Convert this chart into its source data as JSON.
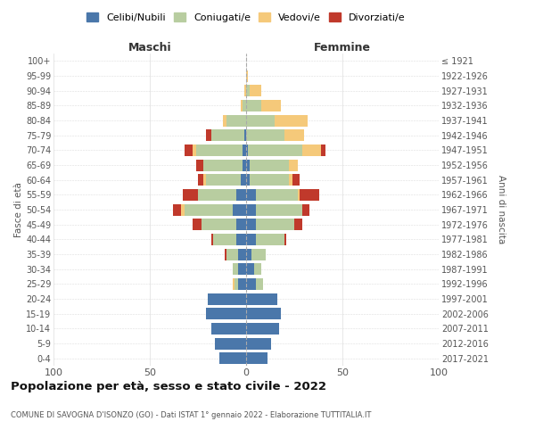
{
  "age_groups": [
    "0-4",
    "5-9",
    "10-14",
    "15-19",
    "20-24",
    "25-29",
    "30-34",
    "35-39",
    "40-44",
    "45-49",
    "50-54",
    "55-59",
    "60-64",
    "65-69",
    "70-74",
    "75-79",
    "80-84",
    "85-89",
    "90-94",
    "95-99",
    "100+"
  ],
  "birth_years": [
    "2017-2021",
    "2012-2016",
    "2007-2011",
    "2002-2006",
    "1997-2001",
    "1992-1996",
    "1987-1991",
    "1982-1986",
    "1977-1981",
    "1972-1976",
    "1967-1971",
    "1962-1966",
    "1957-1961",
    "1952-1956",
    "1947-1951",
    "1942-1946",
    "1937-1941",
    "1932-1936",
    "1927-1931",
    "1922-1926",
    "≤ 1921"
  ],
  "males": {
    "celibi": [
      14,
      16,
      18,
      21,
      20,
      4,
      4,
      4,
      5,
      5,
      7,
      5,
      3,
      2,
      2,
      1,
      0,
      0,
      0,
      0,
      0
    ],
    "coniugati": [
      0,
      0,
      0,
      0,
      0,
      2,
      3,
      6,
      12,
      18,
      25,
      20,
      18,
      20,
      24,
      17,
      10,
      2,
      0,
      0,
      0
    ],
    "vedovi": [
      0,
      0,
      0,
      0,
      0,
      1,
      0,
      0,
      0,
      0,
      2,
      0,
      1,
      0,
      2,
      0,
      2,
      1,
      1,
      0,
      0
    ],
    "divorziati": [
      0,
      0,
      0,
      0,
      0,
      0,
      0,
      1,
      1,
      5,
      4,
      8,
      3,
      4,
      4,
      3,
      0,
      0,
      0,
      0,
      0
    ]
  },
  "females": {
    "nubili": [
      11,
      13,
      17,
      18,
      16,
      5,
      4,
      3,
      5,
      5,
      5,
      5,
      2,
      2,
      1,
      0,
      0,
      0,
      0,
      0,
      0
    ],
    "coniugate": [
      0,
      0,
      0,
      0,
      0,
      4,
      4,
      7,
      15,
      20,
      24,
      22,
      20,
      20,
      28,
      20,
      15,
      8,
      2,
      0,
      0
    ],
    "vedove": [
      0,
      0,
      0,
      0,
      0,
      0,
      0,
      0,
      0,
      0,
      0,
      1,
      2,
      5,
      10,
      10,
      17,
      10,
      6,
      1,
      0
    ],
    "divorziate": [
      0,
      0,
      0,
      0,
      0,
      0,
      0,
      0,
      1,
      4,
      4,
      10,
      4,
      0,
      2,
      0,
      0,
      0,
      0,
      0,
      0
    ]
  },
  "colors": {
    "celibi": "#4a77aa",
    "coniugati": "#b8cdA0",
    "vedovi": "#f5c97a",
    "divorziati": "#c0392b"
  },
  "xlim": 100,
  "title": "Popolazione per età, sesso e stato civile - 2022",
  "subtitle": "COMUNE DI SAVOGNA D'ISONZO (GO) - Dati ISTAT 1° gennaio 2022 - Elaborazione TUTTITALIA.IT",
  "ylabel_left": "Fasce di età",
  "ylabel_right": "Anni di nascita",
  "xlabel_left": "Maschi",
  "xlabel_right": "Femmine"
}
